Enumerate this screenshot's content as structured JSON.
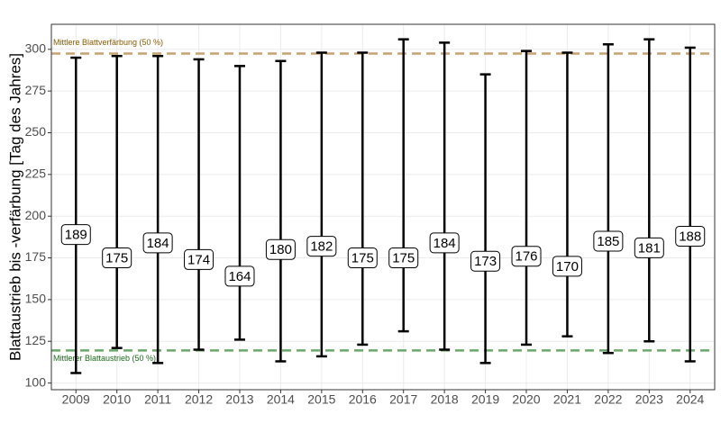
{
  "chart_data": {
    "type": "range",
    "y_label": "Blattaustrieb bis -verfärbung [Tag des Jahres]",
    "categories": [
      "2009",
      "2010",
      "2011",
      "2012",
      "2013",
      "2014",
      "2015",
      "2016",
      "2017",
      "2018",
      "2019",
      "2020",
      "2021",
      "2022",
      "2023",
      "2024"
    ],
    "start": [
      106,
      121,
      112,
      120,
      126,
      113,
      116,
      123,
      131,
      120,
      112,
      123,
      128,
      118,
      125,
      113
    ],
    "end": [
      295,
      296,
      296,
      294,
      290,
      293,
      298,
      298,
      306,
      304,
      285,
      299,
      298,
      303,
      306,
      301
    ],
    "duration": [
      189,
      175,
      184,
      174,
      164,
      180,
      182,
      175,
      175,
      184,
      173,
      176,
      170,
      185,
      181,
      188
    ],
    "color": "#000000",
    "hlines": [
      {
        "value": 297.5,
        "label": "Mittlere Blattverfärbung (50 %)",
        "color": "#c8a26e",
        "text_color": "#8b5a00"
      },
      {
        "value": 119.5,
        "label": "Mittlerer Blattaustrieb (50 %)",
        "color": "#6aa86a",
        "text_color": "#1a6b1a"
      }
    ],
    "ylim": [
      96,
      315
    ],
    "yticks": [
      100,
      125,
      150,
      175,
      200,
      225,
      250,
      275,
      300
    ],
    "grid": true
  }
}
